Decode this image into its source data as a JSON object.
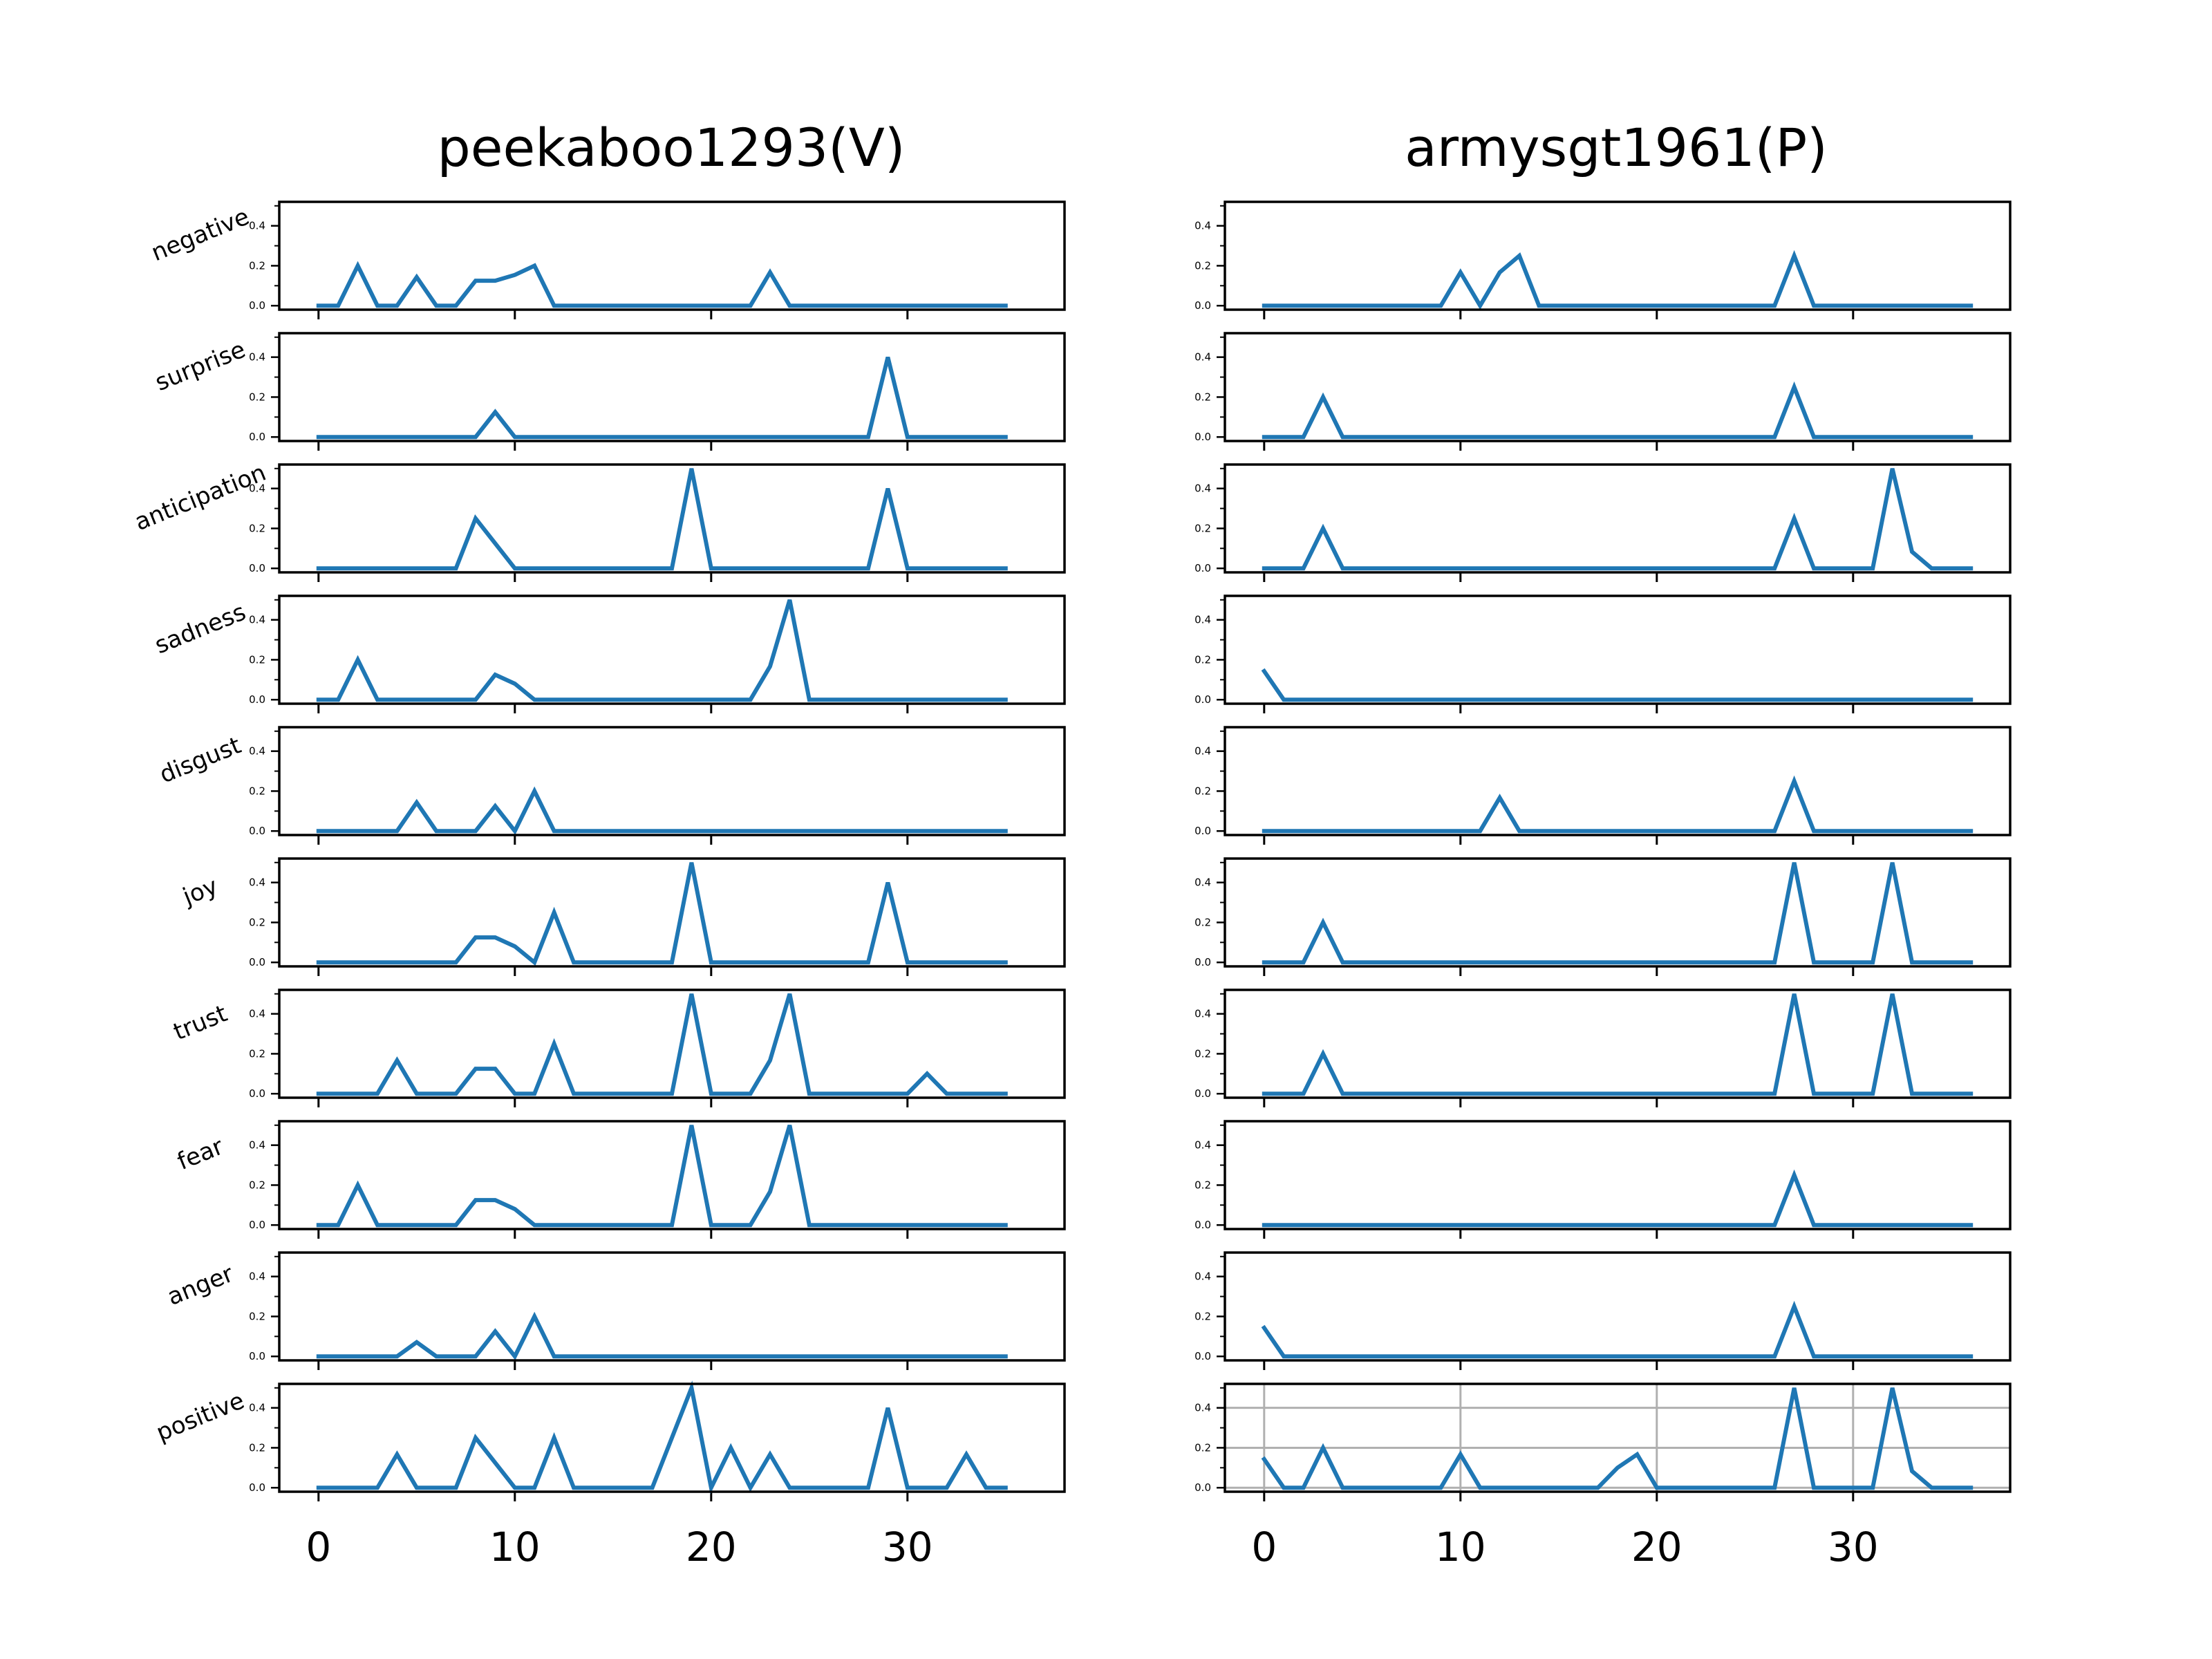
{
  "chart_data": {
    "type": "line",
    "columns": [
      "peekaboo1293(V)",
      "armysgt1961(P)"
    ],
    "rows": [
      "negative",
      "surprise",
      "anticipation",
      "sadness",
      "disgust",
      "joy",
      "trust",
      "fear",
      "anger",
      "positive"
    ],
    "series_color": "#1f77b4",
    "xlim": [
      -2,
      38
    ],
    "ylim": [
      -0.02,
      0.52
    ],
    "x_ticks": [
      0,
      10,
      20,
      30
    ],
    "y_ticks": [
      0.0,
      0.2,
      0.4
    ],
    "y_tick_labels": [
      "0.0",
      "0.2",
      "0.4"
    ],
    "grid_on_panel": "armysgt1961(P) / positive",
    "panels": [
      [
        {
          "emotion": "negative",
          "values": [
            0,
            0,
            0.2,
            0,
            0,
            0.143,
            0,
            0,
            0.125,
            0.125,
            0.154,
            0.2,
            0,
            0,
            0,
            0,
            0,
            0,
            0,
            0,
            0,
            0,
            0,
            0.167,
            0,
            0,
            0,
            0,
            0,
            0,
            0,
            0,
            0,
            0,
            0,
            0
          ]
        },
        {
          "emotion": "surprise",
          "values": [
            0,
            0,
            0,
            0,
            0,
            0,
            0,
            0,
            0,
            0.125,
            0,
            0,
            0,
            0,
            0,
            0,
            0,
            0,
            0,
            0,
            0,
            0,
            0,
            0,
            0,
            0,
            0,
            0,
            0,
            0.4,
            0,
            0,
            0,
            0,
            0,
            0
          ]
        },
        {
          "emotion": "anticipation",
          "values": [
            0,
            0,
            0,
            0,
            0,
            0,
            0,
            0,
            0.25,
            0.125,
            0,
            0,
            0,
            0,
            0,
            0,
            0,
            0,
            0,
            0.5,
            0,
            0,
            0,
            0,
            0,
            0,
            0,
            0,
            0,
            0.4,
            0,
            0,
            0,
            0,
            0,
            0
          ]
        },
        {
          "emotion": "sadness",
          "values": [
            0,
            0,
            0.2,
            0,
            0,
            0,
            0,
            0,
            0,
            0.125,
            0.08,
            0,
            0,
            0,
            0,
            0,
            0,
            0,
            0,
            0,
            0,
            0,
            0,
            0.167,
            0.5,
            0,
            0,
            0,
            0,
            0,
            0,
            0,
            0,
            0,
            0,
            0
          ]
        },
        {
          "emotion": "disgust",
          "values": [
            0,
            0,
            0,
            0,
            0,
            0.143,
            0,
            0,
            0,
            0.125,
            0,
            0.2,
            0,
            0,
            0,
            0,
            0,
            0,
            0,
            0,
            0,
            0,
            0,
            0,
            0,
            0,
            0,
            0,
            0,
            0,
            0,
            0,
            0,
            0,
            0,
            0
          ]
        },
        {
          "emotion": "joy",
          "values": [
            0,
            0,
            0,
            0,
            0,
            0,
            0,
            0,
            0.125,
            0.125,
            0.08,
            0,
            0.25,
            0,
            0,
            0,
            0,
            0,
            0,
            0.5,
            0,
            0,
            0,
            0,
            0,
            0,
            0,
            0,
            0,
            0.4,
            0,
            0,
            0,
            0,
            0,
            0
          ]
        },
        {
          "emotion": "trust",
          "values": [
            0,
            0,
            0,
            0,
            0.167,
            0,
            0,
            0,
            0.125,
            0.125,
            0,
            0,
            0.25,
            0,
            0,
            0,
            0,
            0,
            0,
            0.5,
            0,
            0,
            0,
            0.167,
            0.5,
            0,
            0,
            0,
            0,
            0,
            0,
            0.1,
            0,
            0,
            0,
            0
          ]
        },
        {
          "emotion": "fear",
          "values": [
            0,
            0,
            0.2,
            0,
            0,
            0,
            0,
            0,
            0.125,
            0.125,
            0.08,
            0,
            0,
            0,
            0,
            0,
            0,
            0,
            0,
            0.5,
            0,
            0,
            0,
            0.167,
            0.5,
            0,
            0,
            0,
            0,
            0,
            0,
            0,
            0,
            0,
            0,
            0
          ]
        },
        {
          "emotion": "anger",
          "values": [
            0,
            0,
            0,
            0,
            0,
            0.071,
            0,
            0,
            0,
            0.125,
            0,
            0.2,
            0,
            0,
            0,
            0,
            0,
            0,
            0,
            0,
            0,
            0,
            0,
            0,
            0,
            0,
            0,
            0,
            0,
            0,
            0,
            0,
            0,
            0,
            0,
            0
          ]
        },
        {
          "emotion": "positive",
          "values": [
            0,
            0,
            0,
            0,
            0.167,
            0,
            0,
            0,
            0.25,
            0.125,
            0,
            0,
            0.25,
            0,
            0,
            0,
            0,
            0,
            0.25,
            0.5,
            0,
            0.2,
            0,
            0.167,
            0,
            0,
            0,
            0,
            0,
            0.4,
            0,
            0,
            0,
            0.167,
            0,
            0
          ]
        }
      ],
      [
        {
          "emotion": "negative",
          "values": [
            0,
            0,
            0,
            0,
            0,
            0,
            0,
            0,
            0,
            0,
            0.167,
            0,
            0.167,
            0.25,
            0,
            0,
            0,
            0,
            0,
            0,
            0,
            0,
            0,
            0,
            0,
            0,
            0,
            0.25,
            0,
            0,
            0,
            0,
            0,
            0,
            0,
            0,
            0
          ]
        },
        {
          "emotion": "surprise",
          "values": [
            0,
            0,
            0,
            0.2,
            0,
            0,
            0,
            0,
            0,
            0,
            0,
            0,
            0,
            0,
            0,
            0,
            0,
            0,
            0,
            0,
            0,
            0,
            0,
            0,
            0,
            0,
            0,
            0.25,
            0,
            0,
            0,
            0,
            0,
            0,
            0,
            0,
            0
          ]
        },
        {
          "emotion": "anticipation",
          "values": [
            0,
            0,
            0,
            0.2,
            0,
            0,
            0,
            0,
            0,
            0,
            0,
            0,
            0,
            0,
            0,
            0,
            0,
            0,
            0,
            0,
            0,
            0,
            0,
            0,
            0,
            0,
            0,
            0.25,
            0,
            0,
            0,
            0,
            0.5,
            0.083,
            0,
            0,
            0
          ]
        },
        {
          "emotion": "sadness",
          "values": [
            0.143,
            0,
            0,
            0,
            0,
            0,
            0,
            0,
            0,
            0,
            0,
            0,
            0,
            0,
            0,
            0,
            0,
            0,
            0,
            0,
            0,
            0,
            0,
            0,
            0,
            0,
            0,
            0,
            0,
            0,
            0,
            0,
            0,
            0,
            0,
            0,
            0
          ]
        },
        {
          "emotion": "disgust",
          "values": [
            0,
            0,
            0,
            0,
            0,
            0,
            0,
            0,
            0,
            0,
            0,
            0,
            0.167,
            0,
            0,
            0,
            0,
            0,
            0,
            0,
            0,
            0,
            0,
            0,
            0,
            0,
            0,
            0.25,
            0,
            0,
            0,
            0,
            0,
            0,
            0,
            0,
            0
          ]
        },
        {
          "emotion": "joy",
          "values": [
            0,
            0,
            0,
            0.2,
            0,
            0,
            0,
            0,
            0,
            0,
            0,
            0,
            0,
            0,
            0,
            0,
            0,
            0,
            0,
            0,
            0,
            0,
            0,
            0,
            0,
            0,
            0,
            0.5,
            0,
            0,
            0,
            0,
            0.5,
            0,
            0,
            0,
            0
          ]
        },
        {
          "emotion": "trust",
          "values": [
            0,
            0,
            0,
            0.2,
            0,
            0,
            0,
            0,
            0,
            0,
            0,
            0,
            0,
            0,
            0,
            0,
            0,
            0,
            0,
            0,
            0,
            0,
            0,
            0,
            0,
            0,
            0,
            0.5,
            0,
            0,
            0,
            0,
            0.5,
            0,
            0,
            0,
            0
          ]
        },
        {
          "emotion": "fear",
          "values": [
            0,
            0,
            0,
            0,
            0,
            0,
            0,
            0,
            0,
            0,
            0,
            0,
            0,
            0,
            0,
            0,
            0,
            0,
            0,
            0,
            0,
            0,
            0,
            0,
            0,
            0,
            0,
            0.25,
            0,
            0,
            0,
            0,
            0,
            0,
            0,
            0,
            0
          ]
        },
        {
          "emotion": "anger",
          "values": [
            0.143,
            0,
            0,
            0,
            0,
            0,
            0,
            0,
            0,
            0,
            0,
            0,
            0,
            0,
            0,
            0,
            0,
            0,
            0,
            0,
            0,
            0,
            0,
            0,
            0,
            0,
            0,
            0.25,
            0,
            0,
            0,
            0,
            0,
            0,
            0,
            0,
            0
          ]
        },
        {
          "emotion": "positive",
          "values": [
            0.143,
            0,
            0,
            0.2,
            0,
            0,
            0,
            0,
            0,
            0,
            0.167,
            0,
            0,
            0,
            0,
            0,
            0,
            0,
            0.1,
            0.167,
            0,
            0,
            0,
            0,
            0,
            0,
            0,
            0.5,
            0,
            0,
            0,
            0,
            0.5,
            0.083,
            0,
            0,
            0
          ]
        }
      ]
    ]
  }
}
